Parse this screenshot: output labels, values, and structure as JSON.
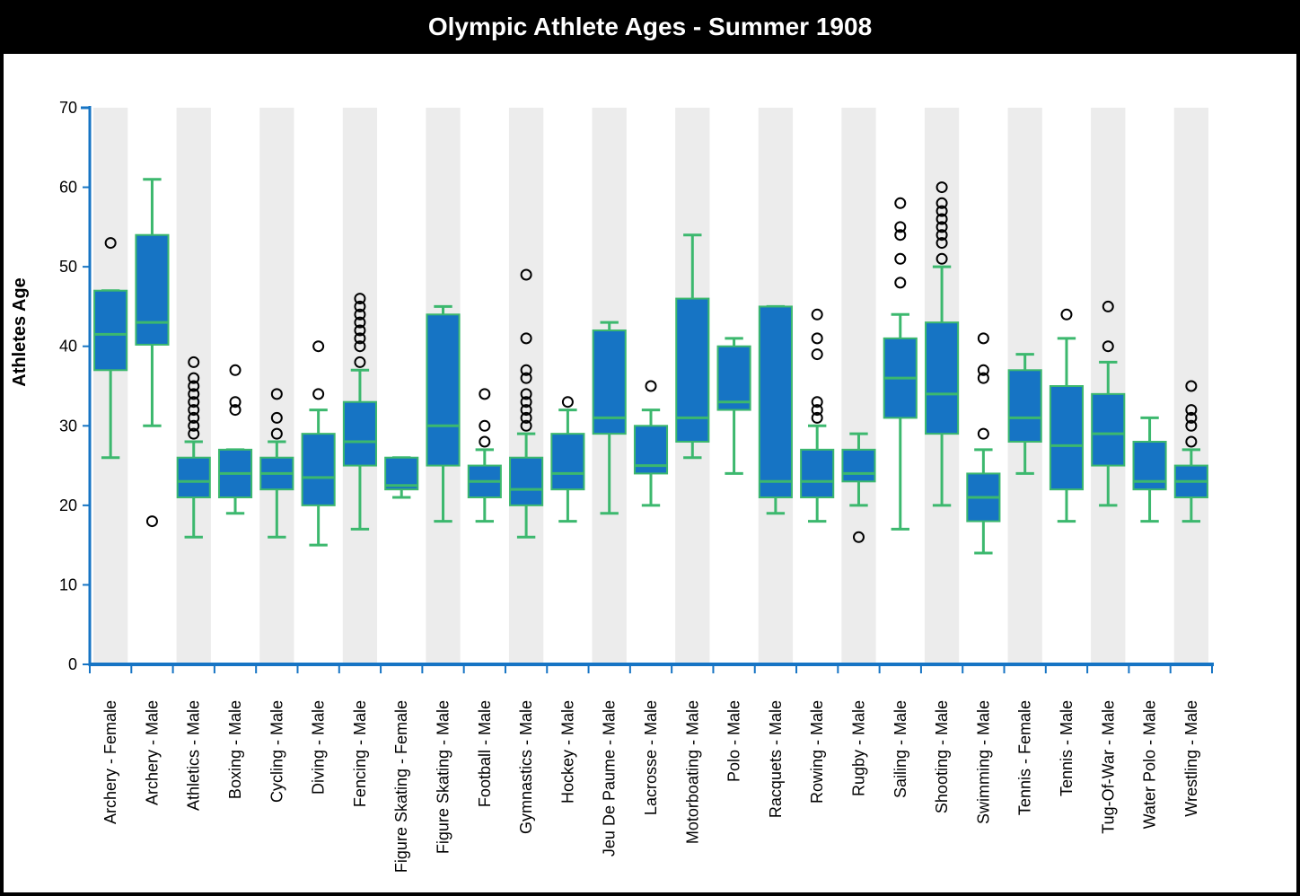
{
  "title": "Olympic Athlete Ages - Summer 1908",
  "chart_data": {
    "type": "boxplot",
    "title": "Olympic Athlete Ages - Summer 1908",
    "ylabel": "Athletes Age",
    "xlabel": "",
    "ylim": [
      0,
      70
    ],
    "yticks": [
      0,
      10,
      20,
      30,
      40,
      50,
      60,
      70
    ],
    "band_shading": "alternating",
    "colors": {
      "box_fill": "#1674c4",
      "box_stroke": "#3cb86e",
      "band": "#ececec",
      "axis": "#1674c4",
      "outlier": "#000000"
    },
    "categories": [
      {
        "label": "Archery - Female",
        "min": 26,
        "q1": 37,
        "median": 41.5,
        "q3": 47,
        "max": 47,
        "outliers": [
          53
        ]
      },
      {
        "label": "Archery - Male",
        "min": 30,
        "q1": 40.2,
        "median": 43,
        "q3": 54,
        "max": 61,
        "outliers": [
          18
        ]
      },
      {
        "label": "Athletics - Male",
        "min": 16,
        "q1": 21,
        "median": 23,
        "q3": 26,
        "max": 28,
        "outliers": [
          29,
          30,
          31,
          32,
          33,
          34,
          35,
          36,
          38
        ]
      },
      {
        "label": "Boxing - Male",
        "min": 19,
        "q1": 21,
        "median": 24,
        "q3": 27,
        "max": 27,
        "outliers": [
          32,
          33,
          37
        ]
      },
      {
        "label": "Cycling - Male",
        "min": 16,
        "q1": 22,
        "median": 24,
        "q3": 26,
        "max": 28,
        "outliers": [
          29,
          31,
          34
        ]
      },
      {
        "label": "Diving - Male",
        "min": 15,
        "q1": 20,
        "median": 23.5,
        "q3": 29,
        "max": 32,
        "outliers": [
          34,
          40
        ]
      },
      {
        "label": "Fencing - Male",
        "min": 17,
        "q1": 25,
        "median": 28,
        "q3": 33,
        "max": 37,
        "outliers": [
          38,
          40,
          41,
          42,
          43,
          44,
          45,
          46
        ]
      },
      {
        "label": "Figure Skating - Female",
        "min": 21,
        "q1": 22,
        "median": 22.5,
        "q3": 26,
        "max": 26,
        "outliers": []
      },
      {
        "label": "Figure Skating - Male",
        "min": 18,
        "q1": 25,
        "median": 30,
        "q3": 44,
        "max": 45,
        "outliers": []
      },
      {
        "label": "Football - Male",
        "min": 18,
        "q1": 21,
        "median": 23,
        "q3": 25,
        "max": 27,
        "outliers": [
          28,
          30,
          34
        ]
      },
      {
        "label": "Gymnastics - Male",
        "min": 16,
        "q1": 20,
        "median": 22,
        "q3": 26,
        "max": 29,
        "outliers": [
          30,
          31,
          32,
          33,
          34,
          36,
          37,
          41,
          49
        ]
      },
      {
        "label": "Hockey - Male",
        "min": 18,
        "q1": 22,
        "median": 24,
        "q3": 29,
        "max": 32,
        "outliers": [
          33
        ]
      },
      {
        "label": "Jeu De Paume - Male",
        "min": 19,
        "q1": 29,
        "median": 31,
        "q3": 42,
        "max": 43,
        "outliers": []
      },
      {
        "label": "Lacrosse - Male",
        "min": 20,
        "q1": 24,
        "median": 25,
        "q3": 30,
        "max": 32,
        "outliers": [
          35
        ]
      },
      {
        "label": "Motorboating - Male",
        "min": 26,
        "q1": 28,
        "median": 31,
        "q3": 46,
        "max": 54,
        "outliers": []
      },
      {
        "label": "Polo - Male",
        "min": 24,
        "q1": 32,
        "median": 33,
        "q3": 40,
        "max": 41,
        "outliers": []
      },
      {
        "label": "Racquets - Male",
        "min": 19,
        "q1": 21,
        "median": 23,
        "q3": 45,
        "max": 45,
        "outliers": []
      },
      {
        "label": "Rowing - Male",
        "min": 18,
        "q1": 21,
        "median": 23,
        "q3": 27,
        "max": 30,
        "outliers": [
          31,
          32,
          33,
          39,
          41,
          44
        ]
      },
      {
        "label": "Rugby - Male",
        "min": 20,
        "q1": 23,
        "median": 24,
        "q3": 27,
        "max": 29,
        "outliers": [
          16
        ]
      },
      {
        "label": "Sailing - Male",
        "min": 17,
        "q1": 31,
        "median": 36,
        "q3": 41,
        "max": 44,
        "outliers": [
          48,
          51,
          54,
          55,
          58
        ]
      },
      {
        "label": "Shooting - Male",
        "min": 20,
        "q1": 29,
        "median": 34,
        "q3": 43,
        "max": 50,
        "outliers": [
          51,
          53,
          54,
          55,
          56,
          57,
          58,
          60
        ]
      },
      {
        "label": "Swimming - Male",
        "min": 14,
        "q1": 18,
        "median": 21,
        "q3": 24,
        "max": 27,
        "outliers": [
          29,
          36,
          37,
          41
        ]
      },
      {
        "label": "Tennis - Female",
        "min": 24,
        "q1": 28,
        "median": 31,
        "q3": 37,
        "max": 39,
        "outliers": []
      },
      {
        "label": "Tennis - Male",
        "min": 18,
        "q1": 22,
        "median": 27.5,
        "q3": 35,
        "max": 41,
        "outliers": [
          44
        ]
      },
      {
        "label": "Tug-Of-War - Male",
        "min": 20,
        "q1": 25,
        "median": 29,
        "q3": 34,
        "max": 38,
        "outliers": [
          40,
          45
        ]
      },
      {
        "label": "Water Polo - Male",
        "min": 18,
        "q1": 22,
        "median": 23,
        "q3": 28,
        "max": 31,
        "outliers": []
      },
      {
        "label": "Wrestling - Male",
        "min": 18,
        "q1": 21,
        "median": 23,
        "q3": 25,
        "max": 27,
        "outliers": [
          28,
          30,
          31,
          32,
          35
        ]
      }
    ]
  }
}
